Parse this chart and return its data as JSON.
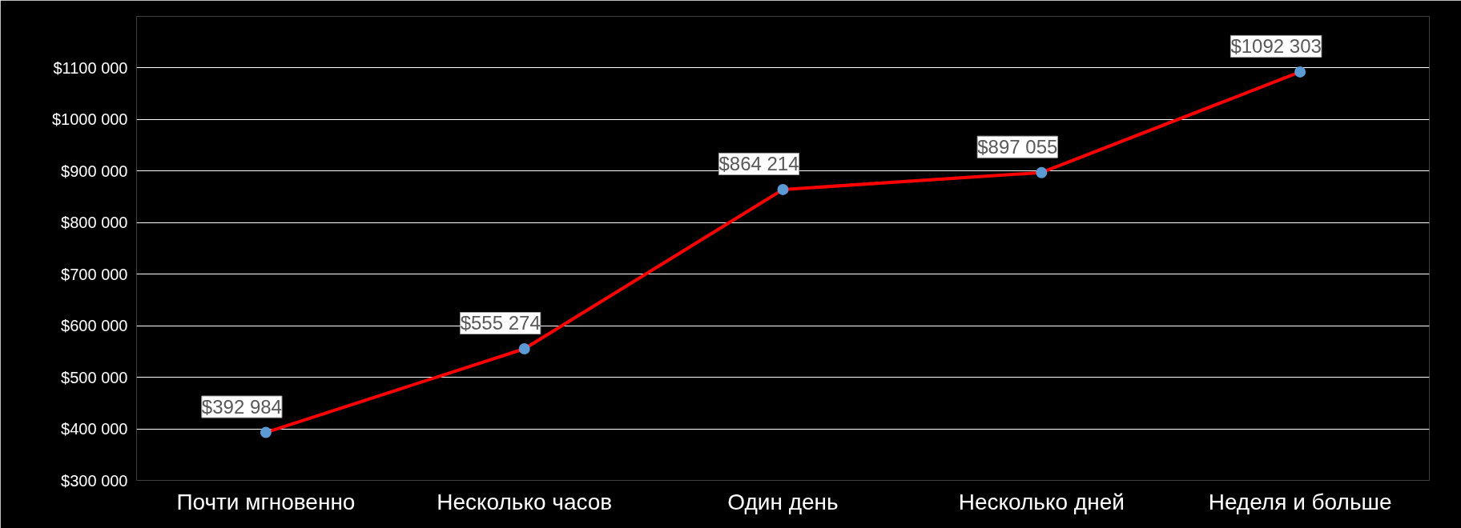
{
  "chart_data": {
    "type": "line",
    "categories": [
      "Почти мгновенно",
      "Несколько часов",
      "Один день",
      "Несколько дней",
      "Неделя и больше"
    ],
    "series": [
      {
        "color": "#ff0000",
        "values": [
          392984,
          555274,
          864214,
          897055,
          1092303
        ],
        "value_labels": [
          "$392 984",
          "$555 274",
          "$864 214",
          "$897 055",
          "$1092 303"
        ]
      }
    ],
    "ylim": [
      300000,
      1200000
    ],
    "yticks": [
      {
        "value": 300000,
        "label": "$300 000"
      },
      {
        "value": 400000,
        "label": "$400 000"
      },
      {
        "value": 500000,
        "label": "$500 000"
      },
      {
        "value": 600000,
        "label": "$600 000"
      },
      {
        "value": 700000,
        "label": "$700 000"
      },
      {
        "value": 800000,
        "label": "$800 000"
      },
      {
        "value": 900000,
        "label": "$900 000"
      },
      {
        "value": 1000000,
        "label": "$1000 000"
      },
      {
        "value": 1100000,
        "label": "$1100 000"
      }
    ],
    "grid": "y",
    "marker": "circle",
    "line_style": "solid"
  }
}
